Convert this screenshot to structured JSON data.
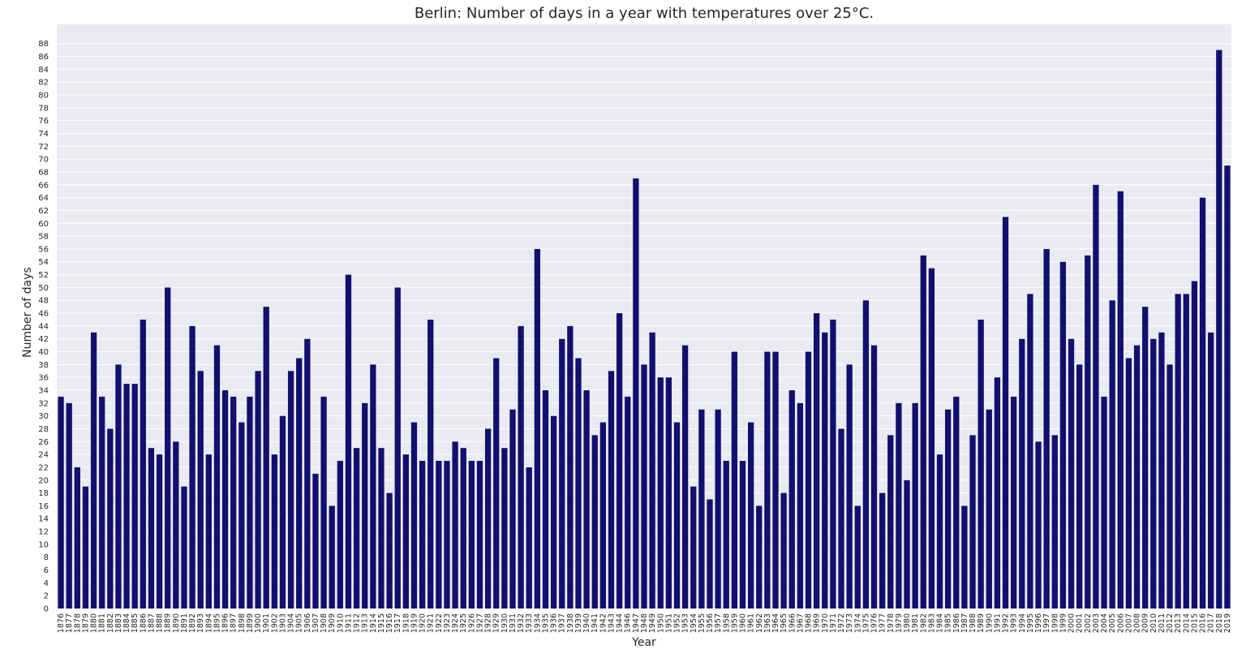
{
  "chart_data": {
    "type": "bar",
    "title": "Berlin: Number of days in a year with temperatures over 25°C.",
    "xlabel": "Year",
    "ylabel": "Number of days",
    "ylim": [
      0,
      91
    ],
    "yticks": [
      0,
      2,
      4,
      6,
      8,
      10,
      12,
      14,
      16,
      18,
      20,
      22,
      24,
      26,
      28,
      30,
      32,
      34,
      36,
      38,
      40,
      42,
      44,
      46,
      48,
      50,
      52,
      54,
      56,
      58,
      60,
      62,
      64,
      66,
      68,
      70,
      72,
      74,
      76,
      78,
      80,
      82,
      84,
      86,
      88
    ],
    "grid": true,
    "bar_color": "#10106e",
    "background_color": "#eaeaf2",
    "categories": [
      "1876",
      "1877",
      "1878",
      "1879",
      "1880",
      "1881",
      "1882",
      "1883",
      "1884",
      "1885",
      "1886",
      "1887",
      "1888",
      "1889",
      "1890",
      "1891",
      "1892",
      "1893",
      "1894",
      "1895",
      "1896",
      "1897",
      "1898",
      "1899",
      "1900",
      "1901",
      "1902",
      "1903",
      "1904",
      "1905",
      "1906",
      "1907",
      "1908",
      "1909",
      "1910",
      "1911",
      "1912",
      "1913",
      "1914",
      "1915",
      "1916",
      "1917",
      "1918",
      "1919",
      "1920",
      "1921",
      "1922",
      "1923",
      "1924",
      "1925",
      "1926",
      "1927",
      "1928",
      "1929",
      "1930",
      "1931",
      "1932",
      "1933",
      "1934",
      "1935",
      "1936",
      "1937",
      "1938",
      "1939",
      "1940",
      "1941",
      "1942",
      "1943",
      "1944",
      "1946",
      "1947",
      "1948",
      "1949",
      "1950",
      "1951",
      "1952",
      "1953",
      "1954",
      "1955",
      "1956",
      "1957",
      "1958",
      "1959",
      "1960",
      "1961",
      "1962",
      "1963",
      "1964",
      "1965",
      "1966",
      "1967",
      "1968",
      "1969",
      "1970",
      "1971",
      "1972",
      "1973",
      "1974",
      "1975",
      "1976",
      "1977",
      "1978",
      "1979",
      "1980",
      "1981",
      "1982",
      "1983",
      "1984",
      "1985",
      "1986",
      "1987",
      "1988",
      "1989",
      "1990",
      "1991",
      "1992",
      "1993",
      "1994",
      "1995",
      "1996",
      "1997",
      "1998",
      "1999",
      "2000",
      "2001",
      "2002",
      "2003",
      "2004",
      "2005",
      "2006",
      "2007",
      "2008",
      "2009",
      "2010",
      "2011",
      "2012",
      "2013",
      "2014",
      "2015",
      "2016",
      "2017",
      "2018",
      "2019"
    ],
    "values": [
      33,
      32,
      22,
      19,
      43,
      33,
      28,
      38,
      35,
      35,
      45,
      25,
      24,
      50,
      26,
      19,
      44,
      37,
      24,
      41,
      34,
      33,
      29,
      33,
      37,
      47,
      24,
      30,
      37,
      39,
      42,
      21,
      33,
      16,
      23,
      52,
      25,
      32,
      38,
      25,
      18,
      50,
      24,
      29,
      23,
      45,
      23,
      23,
      26,
      25,
      23,
      23,
      28,
      39,
      25,
      31,
      44,
      22,
      56,
      34,
      30,
      42,
      44,
      39,
      34,
      27,
      29,
      37,
      46,
      33,
      67,
      38,
      43,
      36,
      36,
      29,
      41,
      19,
      31,
      17,
      31,
      23,
      40,
      23,
      29,
      16,
      40,
      40,
      18,
      34,
      32,
      40,
      46,
      43,
      45,
      28,
      38,
      16,
      48,
      41,
      18,
      27,
      32,
      20,
      32,
      55,
      53,
      24,
      31,
      33,
      16,
      27,
      45,
      31,
      36,
      61,
      33,
      42,
      49,
      26,
      56,
      27,
      54,
      42,
      38,
      55,
      66,
      33,
      48,
      65,
      39,
      41,
      47,
      42,
      43,
      38,
      49,
      49,
      51,
      64,
      43,
      87,
      69
    ]
  }
}
